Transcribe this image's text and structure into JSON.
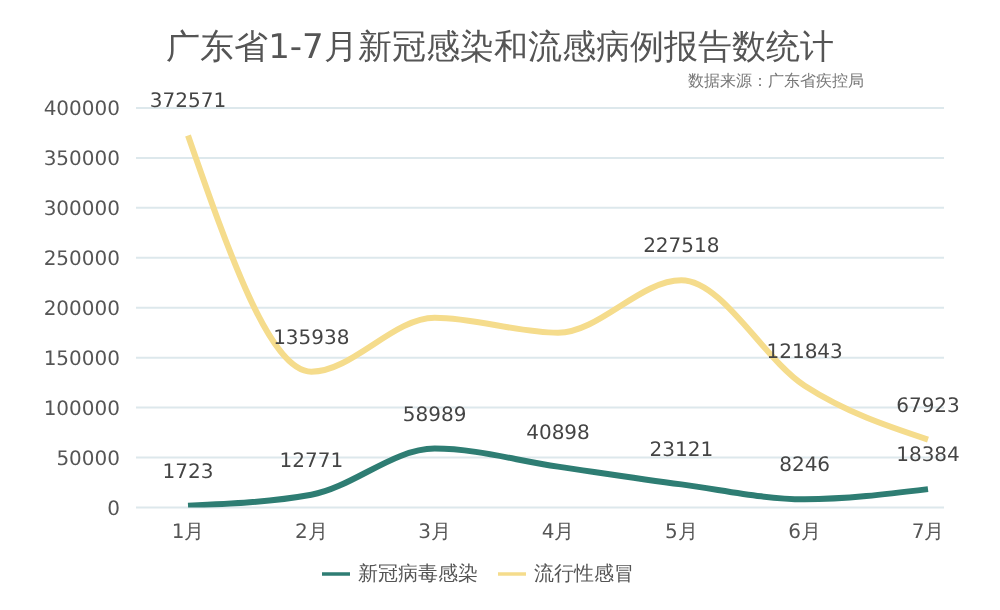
{
  "chart_data": {
    "type": "line",
    "title": "广东省1-7月新冠感染和流感病例报告数统计",
    "annotations": [
      "数据来源：广东省疾控局"
    ],
    "categories": [
      "1月",
      "2月",
      "3月",
      "4月",
      "5月",
      "6月",
      "7月"
    ],
    "series": [
      {
        "name": "新冠病毒感染",
        "color": "#2e7d73",
        "values": [
          1723,
          12771,
          58989,
          40898,
          23121,
          8246,
          18384
        ],
        "value_labels": [
          "1723",
          "12771",
          "58989",
          "40898",
          "23121",
          "8246",
          "18384"
        ]
      },
      {
        "name": "流行性感冒",
        "color": "#f5dc8c",
        "values": [
          372571,
          135938,
          190000,
          175000,
          227518,
          121843,
          67923
        ],
        "value_labels": [
          "372571",
          "135938",
          null,
          null,
          "227518",
          "121843",
          "67923"
        ]
      }
    ],
    "ylim": [
      0,
      400000
    ],
    "yticks": [
      0,
      50000,
      100000,
      150000,
      200000,
      250000,
      300000,
      350000,
      400000
    ],
    "grid": "y",
    "legend": "bottom",
    "marker": "none",
    "line_style": "solid"
  }
}
